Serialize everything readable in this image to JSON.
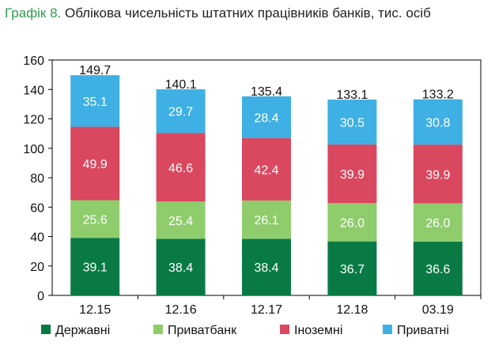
{
  "title": {
    "prefix": "Графік 8.",
    "text": " Облікова чисельність штатних працівників банків, тис. осіб"
  },
  "chart_data": {
    "type": "bar",
    "stacked": true,
    "categories": [
      "12.15",
      "12.16",
      "12.17",
      "12.18",
      "03.19"
    ],
    "series": [
      {
        "name": "Державні",
        "color": "#0a7a45",
        "values": [
          39.1,
          38.4,
          38.4,
          36.7,
          36.6
        ]
      },
      {
        "name": "Приватбанк",
        "color": "#8fcd6c",
        "values": [
          25.6,
          25.4,
          26.1,
          26.0,
          26.0
        ]
      },
      {
        "name": "Іноземні",
        "color": "#d9485f",
        "values": [
          49.9,
          46.6,
          42.4,
          39.9,
          39.9
        ]
      },
      {
        "name": "Приватні",
        "color": "#3eb0e3",
        "values": [
          35.1,
          29.7,
          28.4,
          30.5,
          30.8
        ]
      }
    ],
    "totals": [
      "149.7",
      "140.1",
      "135.4",
      "133.1",
      "133.2"
    ],
    "segment_labels": [
      [
        "39.1",
        "38.4",
        "38.4",
        "36.7",
        "36.6"
      ],
      [
        "25.6",
        "25.4",
        "26.1",
        "26.0",
        "26.0"
      ],
      [
        "49.9",
        "46.6",
        "42.4",
        "39.9",
        "39.9"
      ],
      [
        "35.1",
        "29.7",
        "28.4",
        "30.5",
        "30.8"
      ]
    ],
    "ylim": [
      0,
      160
    ],
    "yticks": [
      "0",
      "20",
      "40",
      "60",
      "80",
      "100",
      "120",
      "140",
      "160"
    ],
    "grid": false,
    "legend_position": "bottom"
  }
}
